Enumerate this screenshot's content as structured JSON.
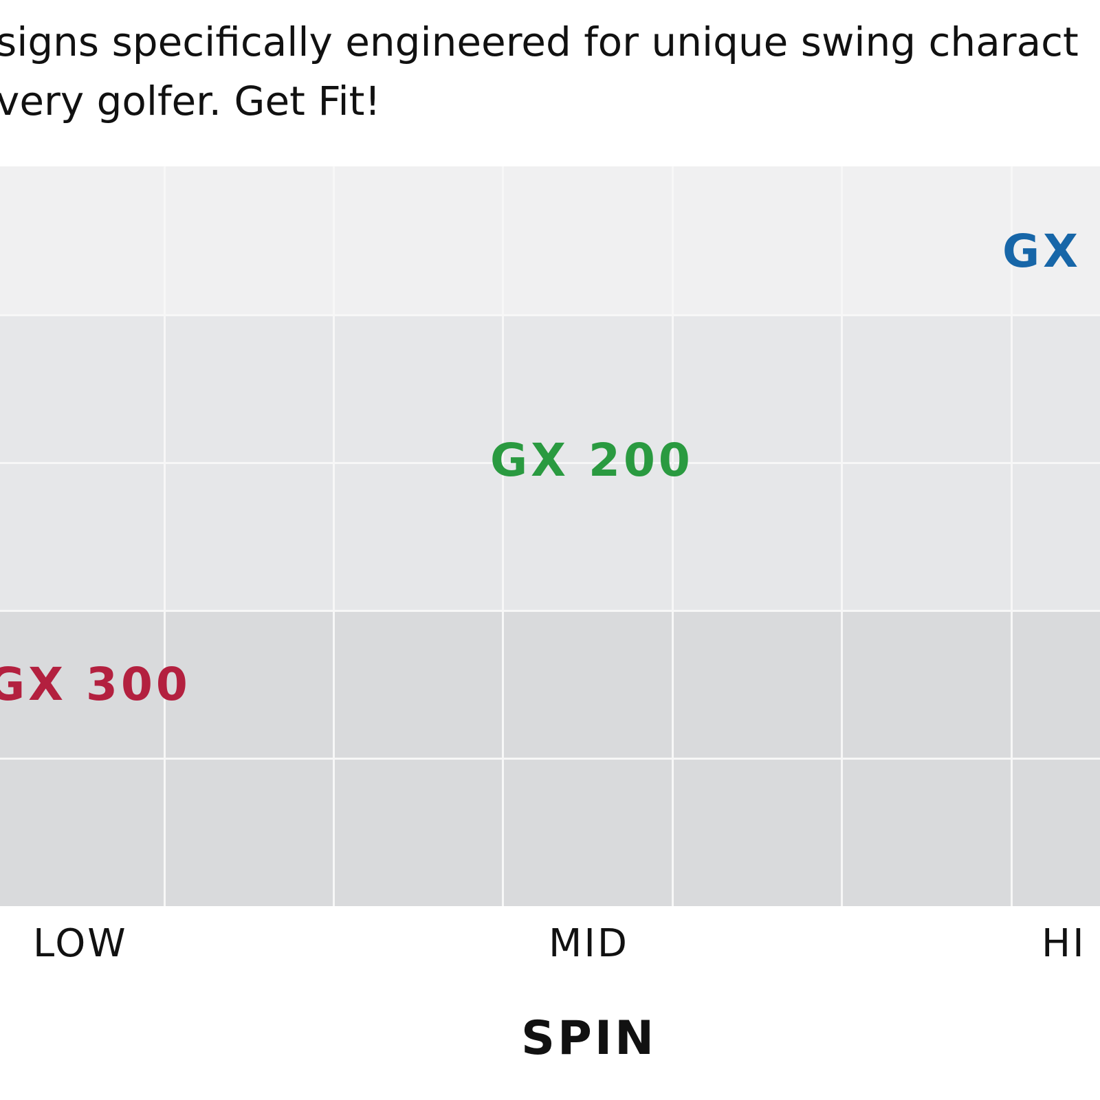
{
  "intro": {
    "lines": [
      "signs specifically engineered for unique swing charact",
      "very golfer. Get Fit!"
    ]
  },
  "chart": {
    "products": [
      {
        "label": "GX",
        "color": "#1766a8"
      },
      {
        "label": "GX 200",
        "color": "#2a9a40"
      },
      {
        "label": "GX 300",
        "color": "#b3203f"
      }
    ],
    "x_labels": [
      "LOW",
      "MID",
      "HI"
    ],
    "x_title": "SPIN"
  }
}
